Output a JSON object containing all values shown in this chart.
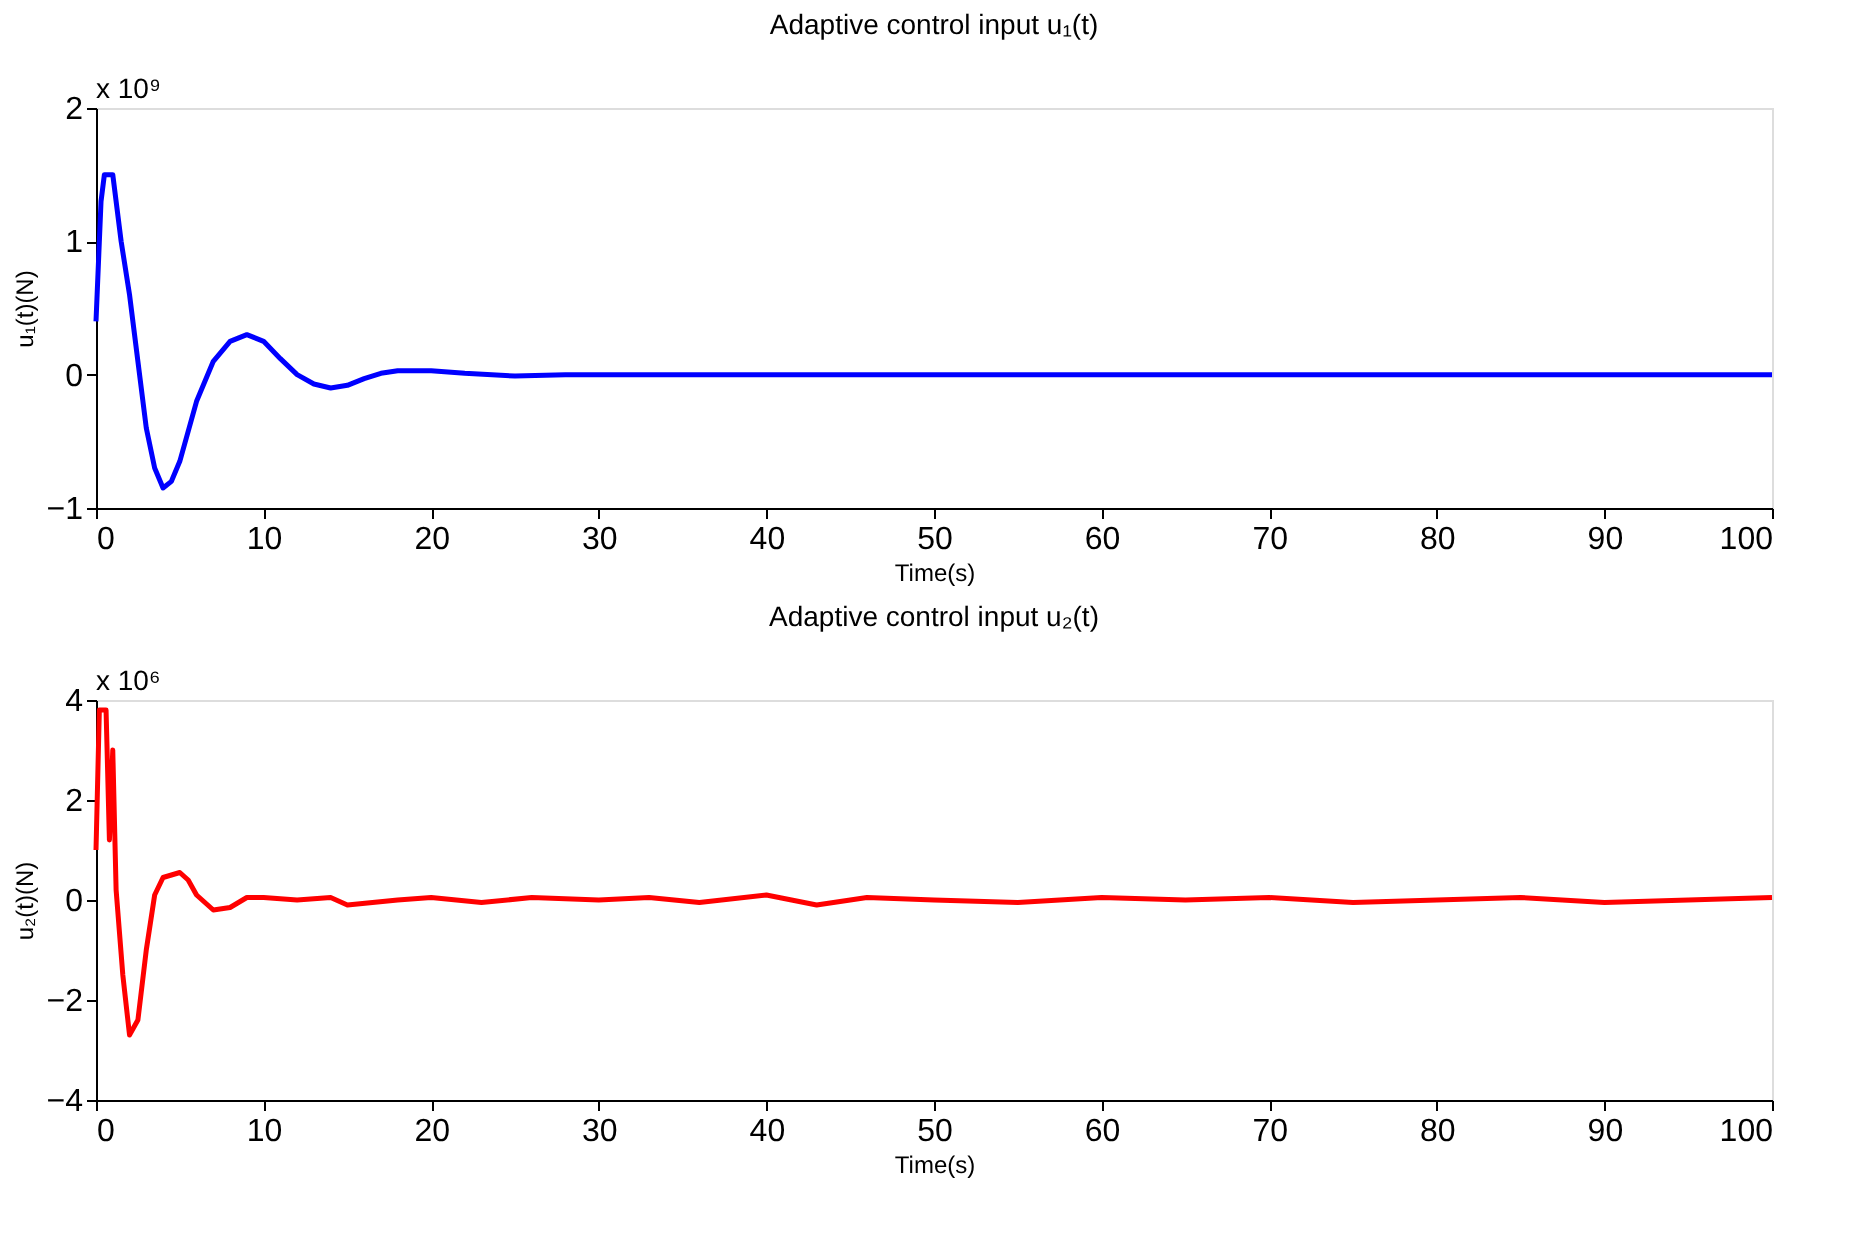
{
  "chart_data": [
    {
      "type": "line",
      "title": "Adaptive control input u₁(t)",
      "xlabel": "Time(s)",
      "ylabel": "u₁(t)(N)",
      "annotations": [
        "x 10⁹"
      ],
      "x": [
        0,
        0.3,
        0.5,
        1,
        1.5,
        2,
        2.5,
        3,
        3.5,
        4,
        4.5,
        5,
        6,
        7,
        8,
        9,
        10,
        11,
        12,
        13,
        14,
        15,
        16,
        17,
        18,
        20,
        22,
        25,
        28,
        35,
        50,
        70,
        100
      ],
      "series": [
        {
          "color": "#0000ff",
          "values": [
            0.4,
            1.3,
            1.5,
            1.5,
            1.0,
            0.6,
            0.1,
            -0.4,
            -0.7,
            -0.85,
            -0.8,
            -0.65,
            -0.2,
            0.1,
            0.25,
            0.3,
            0.25,
            0.12,
            0.0,
            -0.07,
            -0.1,
            -0.08,
            -0.03,
            0.01,
            0.03,
            0.03,
            0.01,
            -0.01,
            0,
            0,
            0,
            0,
            0
          ]
        }
      ],
      "xlim": [
        0,
        100
      ],
      "xticks": [
        0,
        10,
        20,
        30,
        40,
        50,
        60,
        70,
        80,
        90,
        100
      ],
      "ylim": [
        -1,
        2
      ],
      "yticks": [
        -1,
        0,
        1,
        2
      ],
      "grid": false
    },
    {
      "type": "line",
      "title": "Adaptive control input u₂(t)",
      "xlabel": "Time(s)",
      "ylabel": "u₂(t)(N)",
      "annotations": [
        "x 10⁶"
      ],
      "x": [
        0,
        0.2,
        0.6,
        0.8,
        1,
        1.2,
        1.6,
        2,
        2.5,
        3,
        3.5,
        4,
        5,
        5.5,
        6,
        7,
        8,
        9,
        10,
        12,
        14,
        15,
        18,
        20,
        23,
        26,
        30,
        33,
        36,
        40,
        43,
        46,
        50,
        55,
        60,
        65,
        70,
        75,
        80,
        85,
        90,
        95,
        100
      ],
      "series": [
        {
          "color": "#ff0000",
          "values": [
            1.0,
            3.8,
            3.8,
            1.2,
            3.0,
            0.2,
            -1.5,
            -2.7,
            -2.4,
            -1.0,
            0.1,
            0.45,
            0.55,
            0.4,
            0.1,
            -0.2,
            -0.15,
            0.05,
            0.05,
            0.0,
            0.05,
            -0.1,
            0.0,
            0.05,
            -0.05,
            0.05,
            0.0,
            0.05,
            -0.05,
            0.1,
            -0.1,
            0.05,
            0.0,
            -0.05,
            0.05,
            0.0,
            0.05,
            -0.05,
            0.0,
            0.05,
            -0.05,
            0.0,
            0.05
          ]
        }
      ],
      "xlim": [
        0,
        100
      ],
      "xticks": [
        0,
        10,
        20,
        30,
        40,
        50,
        60,
        70,
        80,
        90,
        100
      ],
      "ylim": [
        -4,
        4
      ],
      "yticks": [
        -4,
        -2,
        0,
        2,
        4
      ],
      "grid": false
    }
  ]
}
